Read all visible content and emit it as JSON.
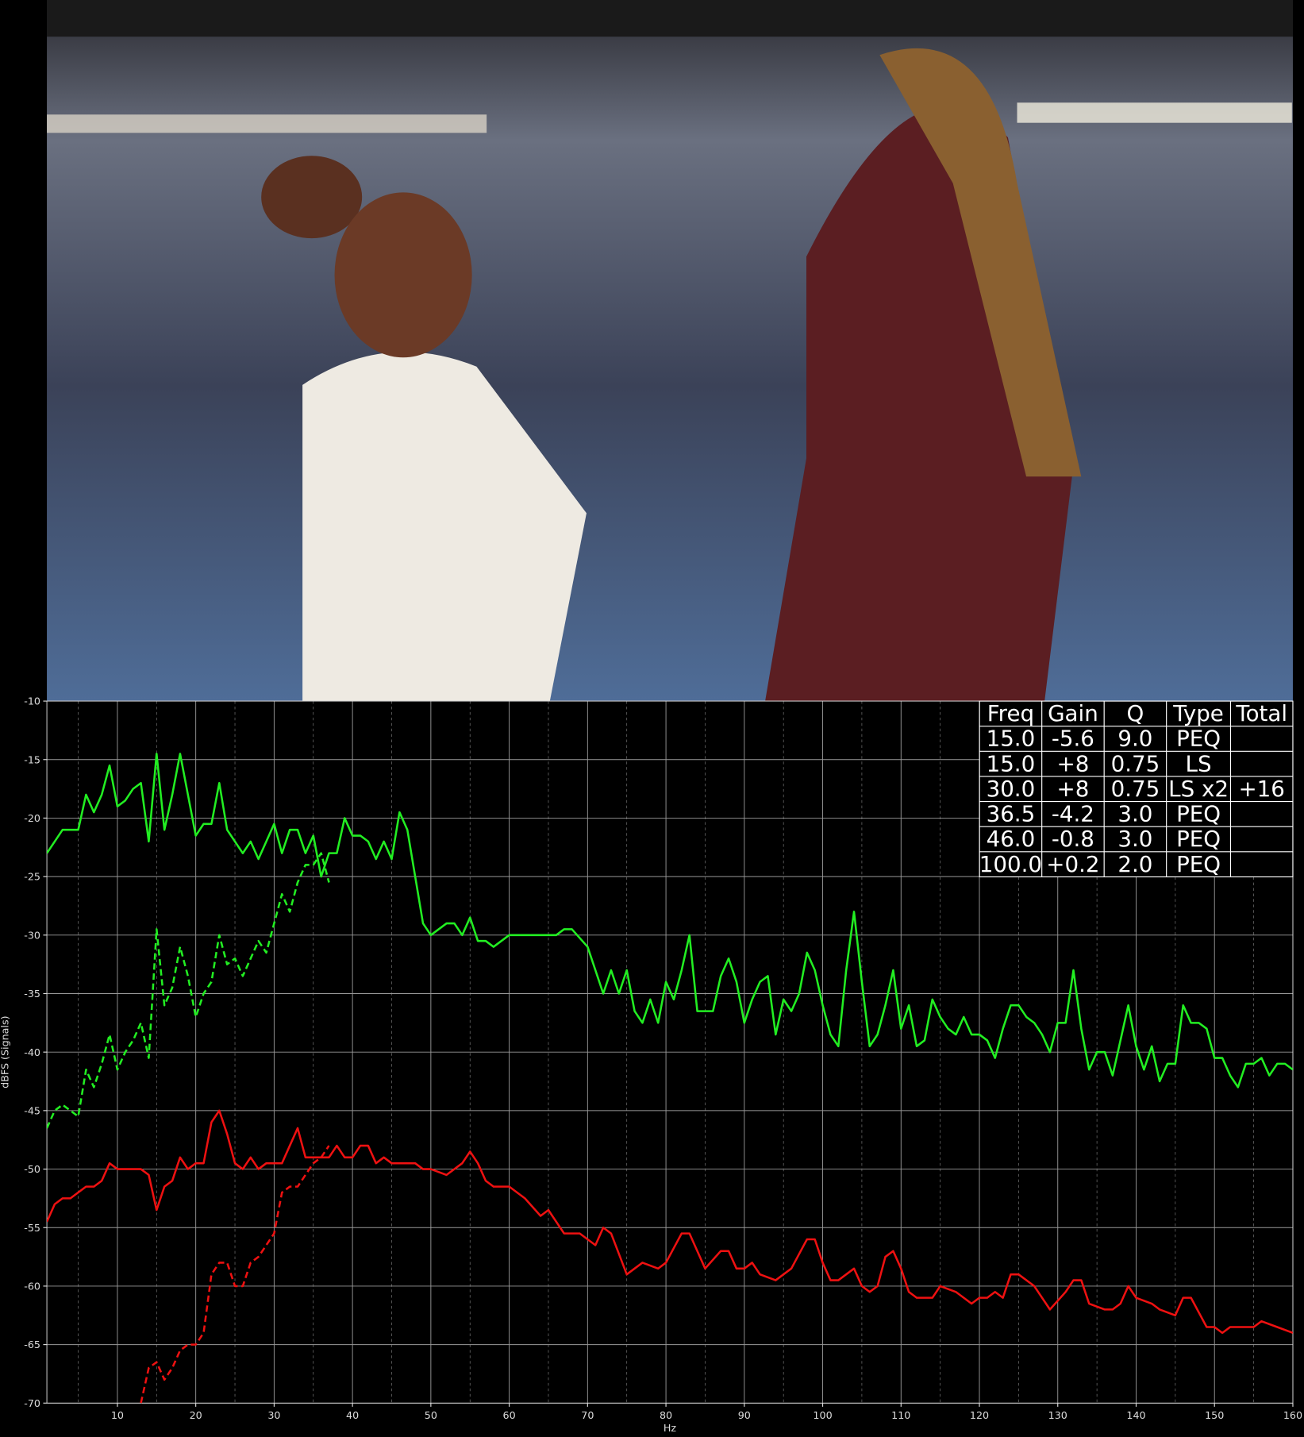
{
  "chart_data": {
    "type": "line",
    "xlabel": "Hz",
    "ylabel": "dBFS (Signals)",
    "xlim": [
      1,
      160
    ],
    "ylim": [
      -70,
      -10
    ],
    "xticks": [
      10,
      20,
      30,
      40,
      50,
      60,
      70,
      80,
      90,
      100,
      110,
      120,
      130,
      140,
      150,
      160
    ],
    "yticks": [
      -10,
      -15,
      -20,
      -25,
      -30,
      -35,
      -40,
      -45,
      -50,
      -55,
      -60,
      -65,
      -70
    ],
    "grid": true,
    "series": [
      {
        "color": "#22ee22",
        "style": "solid",
        "x": [
          1,
          2,
          3,
          4,
          5,
          6,
          7,
          8,
          9,
          10,
          11,
          12,
          13,
          14,
          15,
          16,
          17,
          18,
          19,
          20,
          21,
          22,
          23,
          24,
          25,
          26,
          27,
          28,
          29,
          30,
          31,
          32,
          33,
          34,
          35,
          36,
          37,
          38,
          39,
          40,
          41,
          42,
          43,
          44,
          45,
          46,
          47,
          48,
          49,
          50,
          51,
          52,
          53,
          54,
          55,
          56,
          57,
          58,
          59,
          60,
          62,
          64,
          66,
          67,
          68,
          70,
          72,
          73,
          74,
          75,
          76,
          77,
          78,
          79,
          80,
          81,
          82,
          83,
          84,
          85,
          86,
          87,
          88,
          89,
          90,
          91,
          92,
          93,
          94,
          95,
          96,
          97,
          98,
          99,
          100,
          101,
          102,
          103,
          104,
          105,
          106,
          107,
          108,
          109,
          110,
          111,
          112,
          113,
          114,
          115,
          116,
          117,
          118,
          119,
          120,
          121,
          122,
          123,
          124,
          125,
          126,
          127,
          128,
          129,
          130,
          131,
          132,
          133,
          134,
          135,
          136,
          137,
          138,
          139,
          140,
          141,
          142,
          143,
          144,
          145,
          146,
          147,
          148,
          149,
          150,
          151,
          152,
          153,
          154,
          155,
          156,
          157,
          158,
          159,
          160
        ],
        "values": [
          -23,
          -22,
          -21,
          -21,
          -21,
          -18,
          -19.5,
          -18,
          -15.5,
          -19,
          -18.5,
          -17.5,
          -17,
          -22,
          -14.5,
          -21,
          -18,
          -14.5,
          -18,
          -21.5,
          -20.5,
          -20.5,
          -17,
          -21,
          -22,
          -23,
          -22,
          -23.5,
          -22,
          -20.5,
          -23,
          -21,
          -21,
          -23,
          -21.5,
          -25,
          -23,
          -23,
          -20,
          -21.5,
          -21.5,
          -22,
          -23.5,
          -22,
          -23.5,
          -19.5,
          -21,
          -25,
          -29,
          -30,
          -29.5,
          -29,
          -29,
          -30,
          -28.5,
          -30.5,
          -30.5,
          -31,
          -30.5,
          -30,
          -30,
          -30,
          -30,
          -29.5,
          -29.5,
          -31,
          -35,
          -33,
          -35,
          -33,
          -36.5,
          -37.5,
          -35.5,
          -37.5,
          -34,
          -35.5,
          -33,
          -30,
          -36.5,
          -36.5,
          -36.5,
          -33.5,
          -32,
          -34,
          -37.5,
          -35.5,
          -34,
          -33.5,
          -38.5,
          -35.5,
          -36.5,
          -35,
          -31.5,
          -33,
          -36,
          -38.5,
          -39.5,
          -33,
          -28,
          -34,
          -39.5,
          -38.5,
          -36,
          -33,
          -38,
          -36,
          -39.5,
          -39,
          -35.5,
          -37,
          -38,
          -38.5,
          -37,
          -38.5,
          -38.5,
          -39,
          -40.5,
          -38,
          -36,
          -36,
          -37,
          -37.5,
          -38.5,
          -40,
          -37.5,
          -37.5,
          -33,
          -38,
          -41.5,
          -40,
          -40,
          -42,
          -39,
          -36,
          -39.5,
          -41.5,
          -39.5,
          -42.5,
          -41,
          -41,
          -36,
          -37.5,
          -37.5,
          -38,
          -40.5,
          -40.5,
          -42,
          -43,
          -41,
          -41,
          -40.5,
          -42,
          -41,
          -41,
          -41.5
        ]
      },
      {
        "color": "#22ee22",
        "style": "dashed",
        "x": [
          1,
          2,
          3,
          4,
          5,
          6,
          7,
          8,
          9,
          10,
          11,
          12,
          13,
          14,
          15,
          16,
          17,
          18,
          19,
          20,
          21,
          22,
          23,
          24,
          25,
          26,
          27,
          28,
          29,
          30,
          31,
          32,
          33,
          34,
          35,
          36,
          37
        ],
        "values": [
          -46.5,
          -45,
          -44.5,
          -45,
          -45.5,
          -41.5,
          -43,
          -41,
          -38.5,
          -41.5,
          -40,
          -39,
          -37.5,
          -40.5,
          -29.5,
          -36,
          -34.5,
          -31,
          -33.5,
          -37,
          -35,
          -34,
          -30,
          -32.5,
          -32,
          -33.5,
          -32,
          -30.5,
          -31.5,
          -29,
          -26.5,
          -28,
          -25.5,
          -24,
          -24,
          -23,
          -25.5
        ]
      },
      {
        "color": "#ee1111",
        "style": "solid",
        "x": [
          1,
          2,
          3,
          4,
          5,
          6,
          7,
          8,
          9,
          10,
          11,
          12,
          13,
          14,
          15,
          16,
          17,
          18,
          19,
          20,
          21,
          22,
          23,
          24,
          25,
          26,
          27,
          28,
          29,
          30,
          31,
          32,
          33,
          34,
          35,
          36,
          37,
          38,
          39,
          40,
          41,
          42,
          43,
          44,
          45,
          46,
          48,
          49,
          50,
          52,
          54,
          55,
          56,
          57,
          58,
          60,
          62,
          64,
          65,
          67,
          69,
          70,
          71,
          72,
          73,
          75,
          76,
          77,
          79,
          80,
          82,
          83,
          84,
          85,
          87,
          88,
          89,
          90,
          91,
          92,
          94,
          96,
          98,
          99,
          100,
          101,
          102,
          103,
          104,
          105,
          106,
          107,
          108,
          109,
          110,
          111,
          112,
          114,
          115,
          117,
          119,
          120,
          121,
          122,
          123,
          124,
          125,
          127,
          129,
          131,
          132,
          133,
          134,
          136,
          137,
          138,
          139,
          140,
          142,
          143,
          145,
          146,
          147,
          149,
          150,
          151,
          152,
          154,
          155,
          156,
          158,
          160
        ],
        "values": [
          -54.5,
          -53,
          -52.5,
          -52.5,
          -52,
          -51.5,
          -51.5,
          -51,
          -49.5,
          -50,
          -50,
          -50,
          -50,
          -50.5,
          -53.5,
          -51.5,
          -51,
          -49,
          -50,
          -49.5,
          -49.5,
          -46,
          -45,
          -47,
          -49.5,
          -50,
          -49,
          -50,
          -49.5,
          -49.5,
          -49.5,
          -48,
          -46.5,
          -49,
          -49,
          -49,
          -49,
          -48,
          -49,
          -49,
          -48,
          -48,
          -49.5,
          -49,
          -49.5,
          -49.5,
          -49.5,
          -50,
          -50,
          -50.5,
          -49.5,
          -48.5,
          -49.5,
          -51,
          -51.5,
          -51.5,
          -52.5,
          -54,
          -53.5,
          -55.5,
          -55.5,
          -56,
          -56.5,
          -55,
          -55.5,
          -59,
          -58.5,
          -58,
          -58.5,
          -58,
          -55.5,
          -55.5,
          -57,
          -58.5,
          -57,
          -57,
          -58.5,
          -58.5,
          -58,
          -59,
          -59.5,
          -58.5,
          -56,
          -56,
          -58,
          -59.5,
          -59.5,
          -59,
          -58.5,
          -60,
          -60.5,
          -60,
          -57.5,
          -57,
          -58.5,
          -60.5,
          -61,
          -61,
          -60,
          -60.5,
          -61.5,
          -61,
          -61,
          -60.5,
          -61,
          -59,
          -59,
          -60,
          -62,
          -60.5,
          -59.5,
          -59.5,
          -61.5,
          -62,
          -62,
          -61.5,
          -60,
          -61,
          -61.5,
          -62,
          -62.5,
          -61,
          -61,
          -63.5,
          -63.5,
          -64,
          -63.5,
          -63.5,
          -63.5,
          -63,
          -63.5,
          -64
        ]
      },
      {
        "color": "#ee1111",
        "style": "dashed",
        "x": [
          13,
          14,
          15,
          16,
          17,
          18,
          19,
          20,
          21,
          22,
          23,
          24,
          25,
          26,
          27,
          28,
          29,
          30,
          31,
          32,
          33,
          34,
          35,
          36,
          37
        ],
        "values": [
          -70,
          -67,
          -66.5,
          -68,
          -67,
          -65.5,
          -65,
          -65,
          -64,
          -59,
          -58,
          -58,
          -60,
          -60,
          -58,
          -57.5,
          -56.5,
          -55.5,
          -52,
          -51.5,
          -51.5,
          -50.5,
          -49.5,
          -49,
          -48
        ]
      }
    ],
    "table": {
      "header": [
        "Freq",
        "Gain",
        "Q",
        "Type",
        "Total"
      ],
      "rows": [
        [
          "15.0",
          "-5.6",
          "9.0",
          "PEQ",
          ""
        ],
        [
          "15.0",
          "+8",
          "0.75",
          "LS",
          ""
        ],
        [
          "30.0",
          "+8",
          "0.75",
          "LS x2",
          "+16"
        ],
        [
          "36.5",
          "-4.2",
          "3.0",
          "PEQ",
          ""
        ],
        [
          "46.0",
          "-0.8",
          "3.0",
          "PEQ",
          ""
        ],
        [
          "100.0",
          "+0.2",
          "2.0",
          "PEQ",
          ""
        ]
      ]
    }
  }
}
